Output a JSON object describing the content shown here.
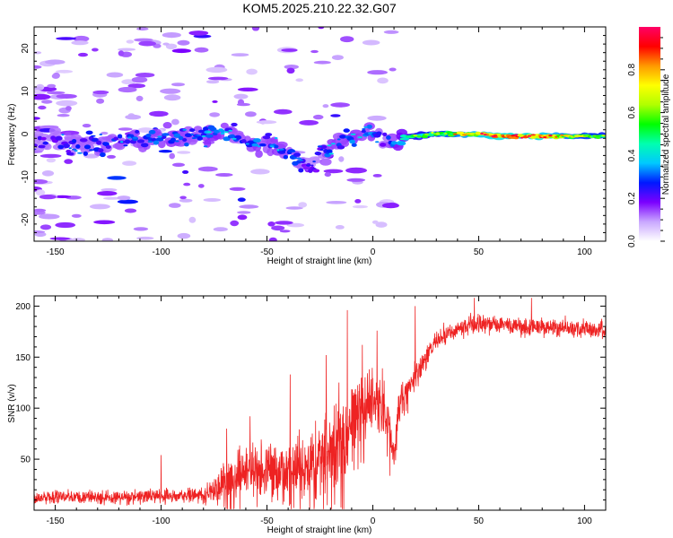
{
  "title": "KOM5.2025.210.22.32.G07",
  "chart_data": [
    {
      "type": "heatmap",
      "xlabel": "Height of straight line (km)",
      "ylabel": "Frequency (Hz)",
      "xlim": [
        -160,
        110
      ],
      "ylim": [
        -25,
        25
      ],
      "x_ticks": [
        -150,
        -100,
        -50,
        0,
        50,
        100
      ],
      "y_ticks": [
        -20,
        -10,
        0,
        10,
        20
      ],
      "colorbar": {
        "label": "Normalized spectral amplitude",
        "range": [
          0,
          1
        ],
        "ticks": [
          "0.0",
          "0.2",
          "0.4",
          "0.6",
          "0.8"
        ],
        "colors": [
          "#ffffff",
          "#c9a7ff",
          "#7b00ff",
          "#0018ff",
          "#00c8ff",
          "#00ffb0",
          "#00ff00",
          "#b0ff00",
          "#ffff00",
          "#ff9900",
          "#ff0000",
          "#ff0066"
        ]
      },
      "ridge": {
        "x": [
          -160,
          -140,
          -120,
          -105,
          -95,
          -85,
          -75,
          -68,
          -62,
          -55,
          -50,
          -45,
          -40,
          -35,
          -30,
          -25,
          -20,
          -15,
          -10,
          -5,
          0,
          5,
          10,
          15,
          20,
          30,
          40,
          50,
          60,
          70,
          80,
          90,
          100,
          110
        ],
        "frequency": [
          -2,
          -2.5,
          -2,
          -1,
          -0.5,
          -1,
          0,
          0.5,
          -1.5,
          -2,
          -2.5,
          -3,
          -4.5,
          -6.5,
          -8,
          -4,
          -3,
          -1.5,
          -0.5,
          0,
          0.5,
          -1.5,
          -2,
          -1,
          -0.5,
          0,
          0,
          0,
          -0.5,
          -0.5,
          -0.5,
          -0.5,
          -0.5,
          -0.5
        ],
        "amplitude": [
          0.25,
          0.28,
          0.3,
          0.32,
          0.35,
          0.3,
          0.38,
          0.32,
          0.3,
          0.35,
          0.3,
          0.35,
          0.3,
          0.3,
          0.22,
          0.25,
          0.35,
          0.3,
          0.38,
          0.32,
          0.35,
          0.25,
          0.35,
          0.45,
          0.55,
          0.6,
          0.72,
          0.82,
          0.9,
          0.92,
          0.85,
          0.72,
          0.65,
          0.6
        ]
      }
    },
    {
      "type": "line",
      "xlabel": "Height of straight line (km)",
      "ylabel": "SNR (v/v)",
      "xlim": [
        -160,
        110
      ],
      "ylim": [
        0,
        210
      ],
      "x_ticks": [
        -150,
        -100,
        -50,
        0,
        50,
        100
      ],
      "y_ticks": [
        50,
        100,
        150,
        200
      ],
      "color": "#ee2222",
      "envelope": {
        "x": [
          -160,
          -140,
          -120,
          -100,
          -85,
          -75,
          -70,
          -60,
          -50,
          -40,
          -30,
          -20,
          -15,
          -12,
          -10,
          -5,
          0,
          5,
          8,
          10,
          12,
          15,
          20,
          25,
          30,
          40,
          50,
          60,
          70,
          80,
          90,
          100,
          110
        ],
        "mean": [
          12,
          13,
          12,
          14,
          14,
          16,
          28,
          38,
          42,
          40,
          48,
          55,
          70,
          60,
          95,
          100,
          110,
          100,
          75,
          55,
          100,
          112,
          130,
          150,
          165,
          178,
          183,
          182,
          180,
          180,
          179,
          178,
          176
        ],
        "spread": [
          8,
          8,
          8,
          9,
          9,
          12,
          28,
          32,
          35,
          38,
          40,
          55,
          60,
          62,
          45,
          42,
          42,
          40,
          30,
          18,
          22,
          22,
          20,
          14,
          12,
          12,
          12,
          11,
          11,
          11,
          11,
          11,
          11
        ]
      },
      "spikes": [
        {
          "x": -100,
          "y": 54
        },
        {
          "x": -69,
          "y": 80
        },
        {
          "x": -58,
          "y": 92
        },
        {
          "x": -39,
          "y": 133
        },
        {
          "x": -22,
          "y": 152
        },
        {
          "x": -12,
          "y": 196
        },
        {
          "x": -5,
          "y": 162
        },
        {
          "x": 2,
          "y": 176
        },
        {
          "x": 9,
          "y": 58
        },
        {
          "x": 20,
          "y": 200
        },
        {
          "x": 48,
          "y": 208
        },
        {
          "x": 75,
          "y": 208
        }
      ]
    }
  ]
}
